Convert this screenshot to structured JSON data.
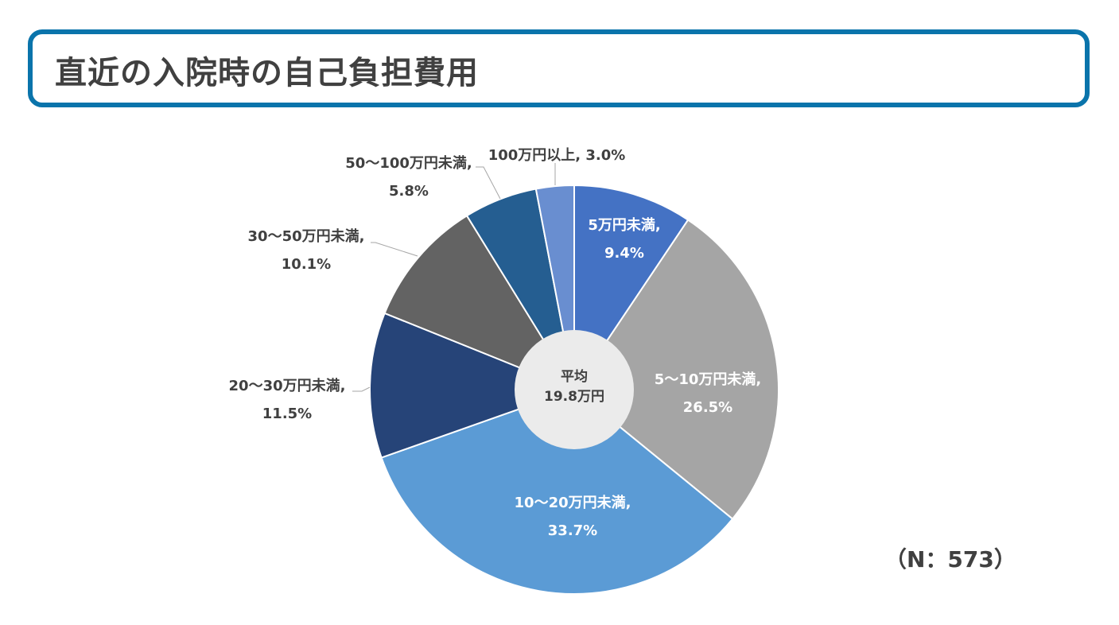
{
  "chart_data": {
    "type": "pie",
    "title": "直近の入院時の自己負担費用",
    "slices": [
      {
        "label": "5万円未満,",
        "value": 9.4,
        "value_text": "9.4%",
        "color": "#4472C4"
      },
      {
        "label": "5～10万円未満,",
        "value": 26.5,
        "value_text": "26.5%",
        "color": "#A5A5A5"
      },
      {
        "label": "10～20万円未満,",
        "value": 33.7,
        "value_text": "33.7%",
        "color": "#5B9BD5"
      },
      {
        "label": "20～30万円未満,",
        "value": 11.5,
        "value_text": "11.5%",
        "color": "#264478"
      },
      {
        "label": "30～50万円未満,",
        "value": 10.1,
        "value_text": "10.1%",
        "color": "#636363"
      },
      {
        "label": "50～100万円未満,",
        "value": 5.8,
        "value_text": "5.8%",
        "color": "#255E91"
      },
      {
        "label": "100万円以上, 3.0%",
        "value": 3.0,
        "value_text": "",
        "color": "#698ED0"
      }
    ],
    "center_label": {
      "line1": "平均",
      "line2": "19.8万円"
    },
    "note": "（N：573）",
    "start": "top",
    "direction": "clockwise"
  }
}
